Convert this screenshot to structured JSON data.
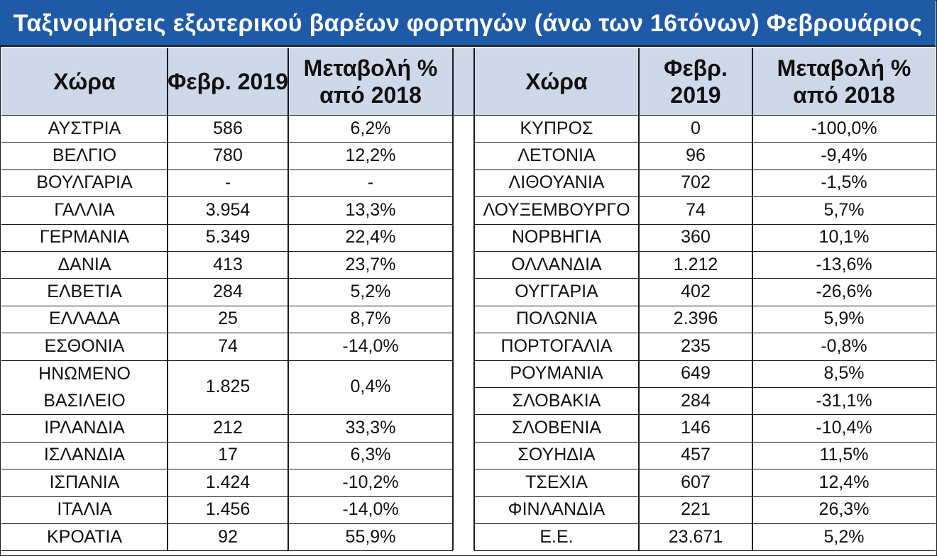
{
  "title": "Ταξινομήσεις εξωτερικού βαρέων φορτηγών (άνω των 16τόνων) Φεβρουάριος 2019",
  "colors": {
    "title_bg": "#1f5aa6",
    "header_bg": "#cfd8e8",
    "border": "#1a1a1a"
  },
  "headers": {
    "left": [
      "Χώρα",
      "Φεβρ. 2019",
      "Μεταβολή % από 2018"
    ],
    "right": [
      "Χώρα",
      "Φεβρ. 2019",
      "Μεταβολή % από 2018"
    ]
  },
  "left_rows": [
    [
      "ΑΥΣΤΡΙΑ",
      "586",
      "6,2%"
    ],
    [
      "ΒΕΛΓΙΟ",
      "780",
      "12,2%"
    ],
    [
      "ΒΟΥΛΓΑΡΙΑ",
      "-",
      "-"
    ],
    [
      "ΓΑΛΛΙΑ",
      "3.954",
      "13,3%"
    ],
    [
      "ΓΕΡΜΑΝΙΑ",
      "5.349",
      "22,4%"
    ],
    [
      "ΔΑΝΙΑ",
      "413",
      "23,7%"
    ],
    [
      "ΕΛΒΕΤΙΑ",
      "284",
      "5,2%"
    ],
    [
      "ΕΛΛΑΔΑ",
      "25",
      "8,7%"
    ],
    [
      "ΕΣΘΟΝΙΑ",
      "74",
      "-14,0%"
    ],
    [
      "ΗΝΩΜΕΝΟ ΒΑΣΙΛΕΙΟ",
      "1.825",
      "0,4%"
    ],
    [
      "ΙΡΛΑΝΔΙΑ",
      "212",
      "33,3%"
    ],
    [
      "ΙΣΛΑΝΔΙΑ",
      "17",
      "6,3%"
    ],
    [
      "ΙΣΠΑΝΙΑ",
      "1.424",
      "-10,2%"
    ],
    [
      "ΙΤΑΛΙΑ",
      "1.456",
      "-14,0%"
    ],
    [
      "ΚΡΟΑΤΙΑ",
      "92",
      "55,9%"
    ]
  ],
  "right_rows": [
    [
      "ΚΥΠΡΟΣ",
      "0",
      "-100,0%"
    ],
    [
      "ΛΕΤΟΝΙΑ",
      "96",
      "-9,4%"
    ],
    [
      "ΛΙΘΟΥΑΝΙΑ",
      "702",
      "-1,5%"
    ],
    [
      "ΛΟΥΞΕΜΒΟΥΡΓΟ",
      "74",
      "5,7%"
    ],
    [
      "ΝΟΡΒΗΓΙΑ",
      "360",
      "10,1%"
    ],
    [
      "ΟΛΛΑΝΔΙΑ",
      "1.212",
      "-13,6%"
    ],
    [
      "ΟΥΓΓΑΡΙΑ",
      "402",
      "-26,6%"
    ],
    [
      "ΠΟΛΩΝΙΑ",
      "2.396",
      "5,9%"
    ],
    [
      "ΠΟΡΤΟΓΑΛΙΑ",
      "235",
      "-0,8%"
    ],
    [
      "ΡΟΥΜΑΝΙΑ",
      "649",
      "8,5%"
    ],
    [
      "ΣΛΟΒΑΚΙΑ",
      "284",
      "-31,1%"
    ],
    [
      "ΣΛΟΒΕΝΙΑ",
      "146",
      "-10,4%"
    ],
    [
      "ΣΟΥΗΔΙΑ",
      "457",
      "11,5%"
    ],
    [
      "ΤΣΕΧΙΑ",
      "607",
      "12,4%"
    ],
    [
      "ΦΙΝΛΑΝΔΙΑ",
      "221",
      "26,3%"
    ],
    [
      "Ε.Ε.",
      "23.671",
      "5,2%"
    ]
  ]
}
